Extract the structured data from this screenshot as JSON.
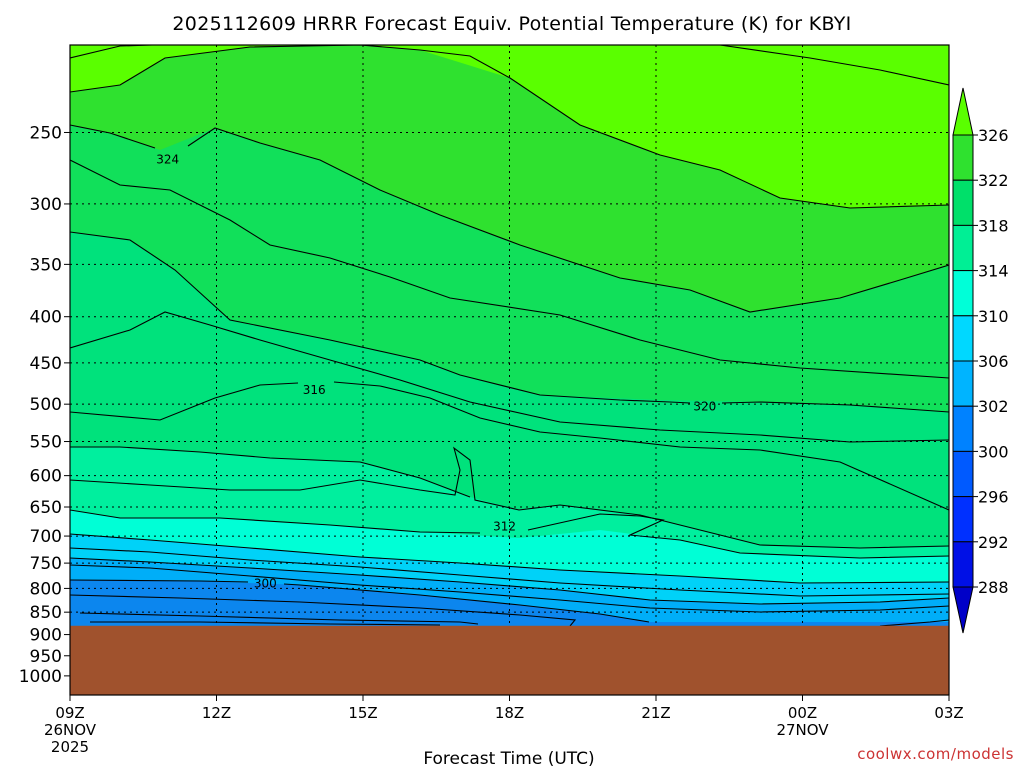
{
  "chart_data": {
    "type": "heatmap",
    "title": "2025112609 HRRR Forecast Equiv. Potential Temperature (K) for KBYI",
    "xlabel": "Forecast Time (UTC)",
    "credit": "coolwx.com/models",
    "x_ticks": [
      {
        "hour": 0,
        "label": "09Z",
        "date": "26NOV",
        "year": "2025"
      },
      {
        "hour": 3,
        "label": "12Z",
        "date": "",
        "year": ""
      },
      {
        "hour": 6,
        "label": "15Z",
        "date": "",
        "year": ""
      },
      {
        "hour": 9,
        "label": "18Z",
        "date": "",
        "year": ""
      },
      {
        "hour": 12,
        "label": "21Z",
        "date": "",
        "year": ""
      },
      {
        "hour": 15,
        "label": "00Z",
        "date": "27NOV",
        "year": ""
      },
      {
        "hour": 18,
        "label": "03Z",
        "date": "",
        "year": ""
      }
    ],
    "x_range_hours": [
      0,
      18
    ],
    "y_ticks": [
      250,
      300,
      350,
      400,
      450,
      500,
      550,
      600,
      650,
      700,
      750,
      800,
      850,
      900,
      950,
      1000
    ],
    "y_range_hpa": [
      200,
      1050
    ],
    "y_scale": "log",
    "surface_pressure_hpa": 880,
    "ground_color": "#a0522d",
    "colorbar": {
      "labels": [
        326,
        322,
        318,
        314,
        310,
        306,
        302,
        300,
        296,
        292,
        288
      ],
      "colors": [
        "#5aff00",
        "#2fe12f",
        "#00e06a",
        "#00ef95",
        "#00ffd8",
        "#00d8ff",
        "#00b4ff",
        "#0082ff",
        "#005aff",
        "#0030ff",
        "#0010e6",
        "#0000c8"
      ]
    },
    "contour_labels": [
      {
        "text": "324",
        "hour": 2.0,
        "pressure": 268
      },
      {
        "text": "316",
        "hour": 5.0,
        "pressure": 482
      },
      {
        "text": "320",
        "hour": 13.0,
        "pressure": 503
      },
      {
        "text": "312",
        "hour": 8.9,
        "pressure": 683
      },
      {
        "text": "300",
        "hour": 4.0,
        "pressure": 790
      }
    ]
  }
}
